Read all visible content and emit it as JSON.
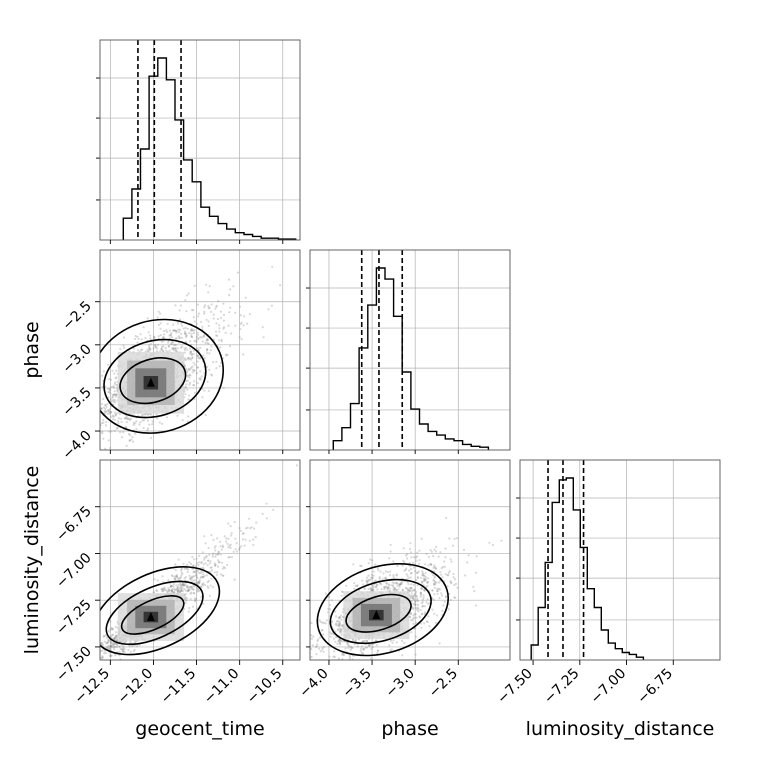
{
  "chart_data": {
    "type": "corner",
    "grid": true,
    "parameters": [
      {
        "name": "geocent_time",
        "xlabel": "geocent_time",
        "ylabel": "",
        "range": [
          -12.62,
          -10.3
        ],
        "ticks": [
          -12.5,
          -12.0,
          -11.5,
          -11.0,
          -10.5
        ],
        "tick_labels": [
          "−12.5",
          "−12.0",
          "−11.5",
          "−11.0",
          "−10.5"
        ],
        "quantiles": [
          -12.18,
          -11.99,
          -11.68
        ],
        "hist_start": -12.35,
        "hist_bin_width": 0.1,
        "hist_counts": [
          12,
          28,
          50,
          90,
          100,
          88,
          66,
          44,
          32,
          18,
          13,
          9,
          6,
          4,
          3,
          2,
          1,
          1,
          0.5,
          0.5
        ]
      },
      {
        "name": "phase",
        "xlabel": "phase",
        "ylabel": "phase",
        "range": [
          -4.22,
          -1.9
        ],
        "ticks": [
          -4.0,
          -3.5,
          -3.0,
          -2.5
        ],
        "tick_labels": [
          "−4.0",
          "−3.5",
          "−3.0",
          "−2.5"
        ],
        "quantiles": [
          -3.62,
          -3.42,
          -3.15
        ],
        "hist_start": -3.95,
        "hist_bin_width": 0.1,
        "hist_counts": [
          5,
          12,
          25,
          55,
          78,
          98,
          92,
          72,
          42,
          22,
          14,
          10,
          8,
          6,
          5,
          3,
          2,
          1.5
        ]
      },
      {
        "name": "luminosity_distance",
        "xlabel": "luminosity_distance",
        "ylabel": "luminosity_distance",
        "range": [
          -7.57,
          -6.5
        ],
        "ticks": [
          -7.5,
          -7.25,
          -7.0,
          -6.75
        ],
        "tick_labels": [
          "−7.50",
          "−7.25",
          "−7.00",
          "−6.75"
        ],
        "quantiles": [
          -7.42,
          -7.34,
          -7.23
        ],
        "hist_start": -7.51,
        "hist_bin_width": 0.0375,
        "hist_counts": [
          8,
          28,
          52,
          84,
          96,
          97,
          80,
          60,
          38,
          28,
          16,
          9,
          6,
          4,
          3,
          1.5
        ]
      }
    ],
    "pairs": [
      {
        "x": "geocent_time",
        "y": "phase",
        "center": [
          -12.03,
          -3.44
        ],
        "sd": [
          0.3,
          0.28
        ],
        "corr": 0.55,
        "skew": [
          0.35,
          0.3
        ]
      },
      {
        "x": "geocent_time",
        "y": "luminosity_distance",
        "center": [
          -12.03,
          -7.34
        ],
        "sd": [
          0.3,
          0.1
        ],
        "corr": 0.88,
        "skew": [
          0.35,
          0.35
        ]
      },
      {
        "x": "phase",
        "y": "luminosity_distance",
        "center": [
          -3.45,
          -7.33
        ],
        "sd": [
          0.3,
          0.1
        ],
        "corr": 0.55,
        "skew": [
          0.3,
          0.35
        ]
      }
    ],
    "colors": {
      "hist_line": "#000000",
      "scatter": "#8f8f8f",
      "grid": "#b0b0b0",
      "contour": "#000000"
    }
  }
}
